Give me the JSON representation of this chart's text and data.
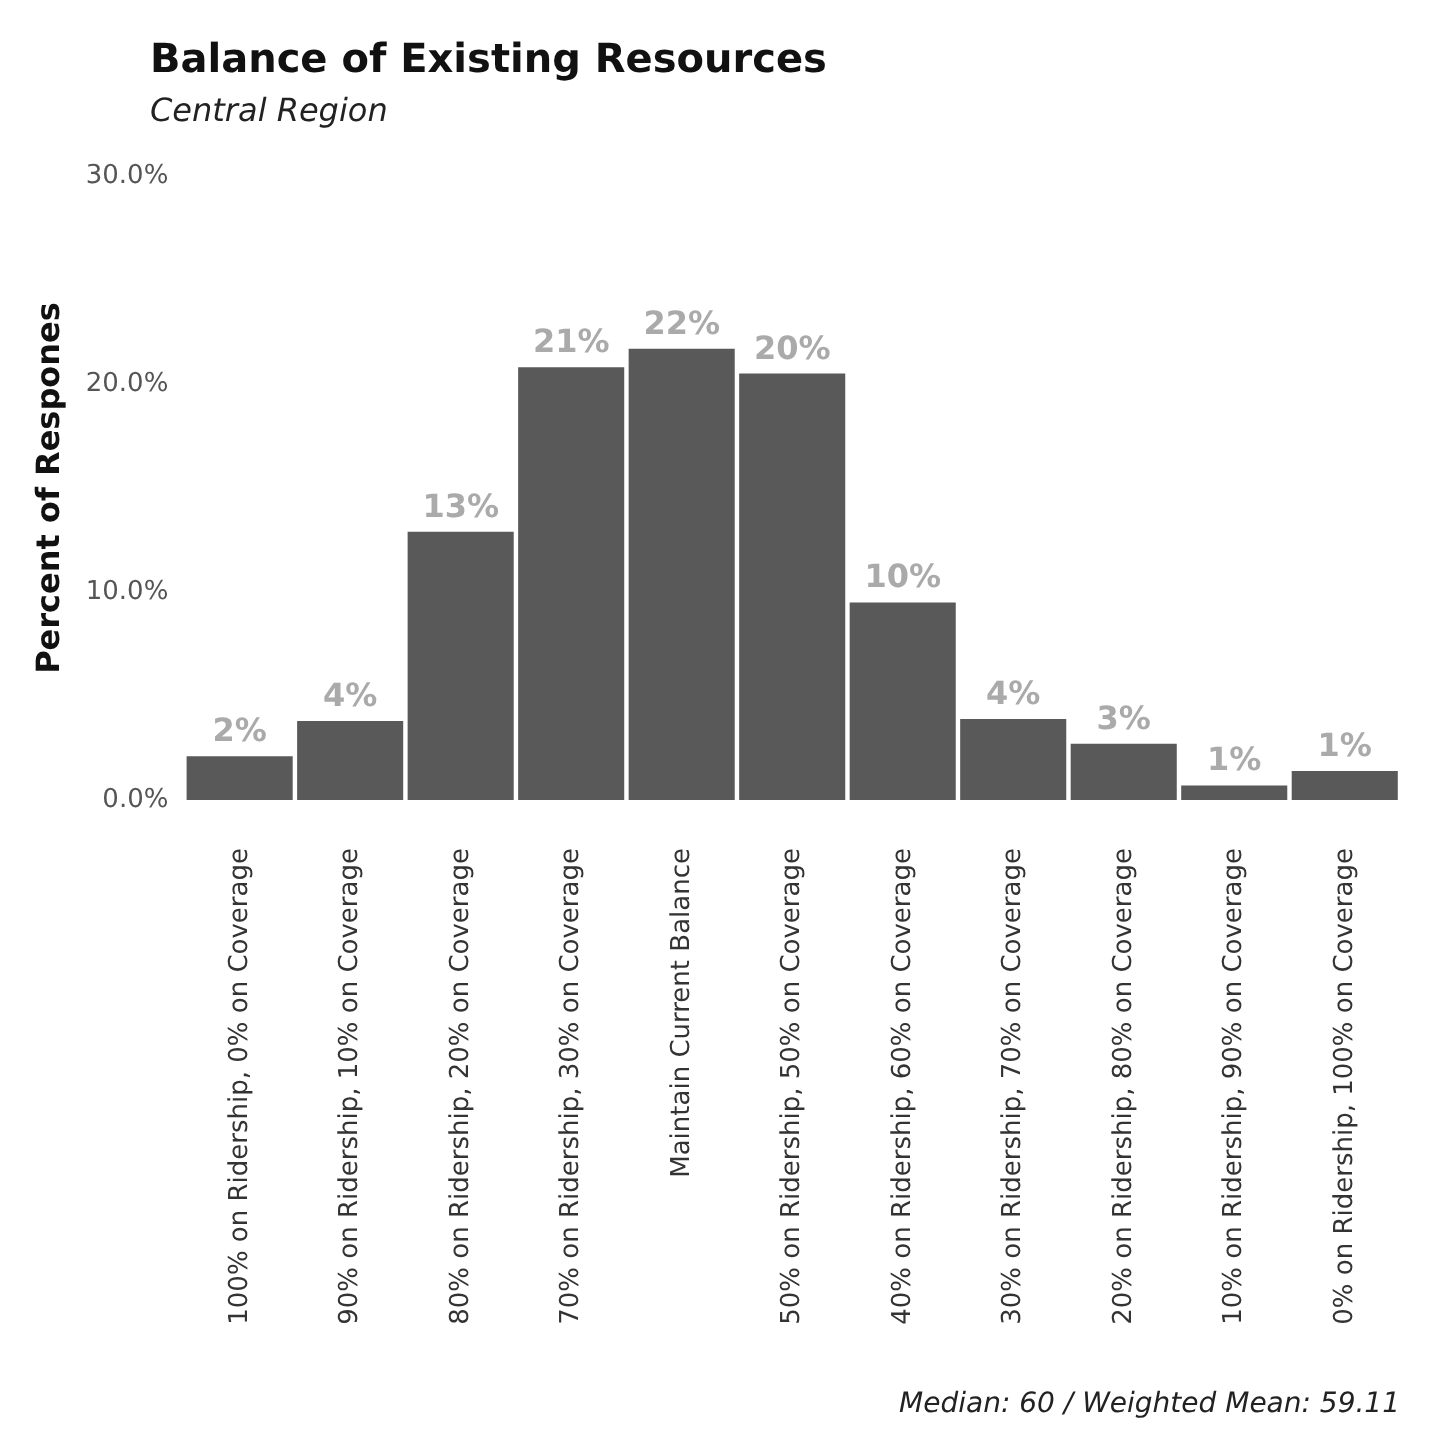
{
  "chart_data": {
    "type": "bar",
    "title": "Balance of Existing Resources",
    "subtitle": "Central Region",
    "ylabel": "Percent of Respones",
    "categories": [
      "100% on Ridership, 0% on Coverage",
      "90% on Ridership, 10% on Coverage",
      "80% on Ridership, 20% on Coverage",
      "70% on Ridership, 30% on Coverage",
      "Maintain Current Balance",
      "50% on Ridership, 50% on Coverage",
      "40% on Ridership, 60% on Coverage",
      "30% on Ridership, 70% on Coverage",
      "20% on Ridership, 80% on Coverage",
      "10% on Ridership, 90% on Coverage",
      "0% on Ridership, 100% on Coverage"
    ],
    "values": [
      2.1,
      3.8,
      12.9,
      20.8,
      21.7,
      20.5,
      9.5,
      3.9,
      2.7,
      0.7,
      1.4
    ],
    "value_labels": [
      "2%",
      "4%",
      "13%",
      "21%",
      "22%",
      "20%",
      "10%",
      "4%",
      "3%",
      "1%",
      "1%"
    ],
    "color": "#595959",
    "ylim": [
      0,
      30
    ],
    "yticks": [
      {
        "value": 0,
        "label": "0.0%"
      },
      {
        "value": 10,
        "label": "10.0%"
      },
      {
        "value": 20,
        "label": "20.0%"
      },
      {
        "value": 30,
        "label": "30.0%"
      }
    ],
    "grid": false,
    "annotations": [
      "Median: 60 / Weighted Mean: 59.11"
    ]
  }
}
